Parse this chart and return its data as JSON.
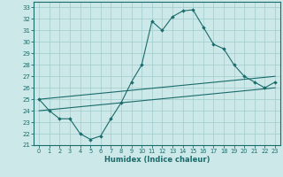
{
  "xlabel": "Humidex (Indice chaleur)",
  "bg_color": "#cce8e8",
  "grid_color": "#a0cccc",
  "line_color": "#1a6b6b",
  "xlim": [
    -0.5,
    23.5
  ],
  "ylim": [
    21,
    33.5
  ],
  "xticks": [
    0,
    1,
    2,
    3,
    4,
    5,
    6,
    7,
    8,
    9,
    10,
    11,
    12,
    13,
    14,
    15,
    16,
    17,
    18,
    19,
    20,
    21,
    22,
    23
  ],
  "yticks": [
    21,
    22,
    23,
    24,
    25,
    26,
    27,
    28,
    29,
    30,
    31,
    32,
    33
  ],
  "line1_x": [
    0,
    1,
    2,
    3,
    4,
    5,
    6,
    7,
    8,
    9,
    10,
    11,
    12,
    13,
    14,
    15,
    16,
    17,
    18,
    19,
    20,
    21,
    22,
    23
  ],
  "line1_y": [
    25.0,
    24.0,
    23.3,
    23.3,
    22.0,
    21.5,
    21.8,
    23.3,
    24.7,
    26.5,
    28.0,
    31.8,
    31.0,
    32.2,
    32.7,
    32.8,
    31.3,
    29.8,
    29.4,
    28.0,
    27.0,
    26.5,
    26.0,
    26.5
  ],
  "line2_x": [
    0,
    23
  ],
  "line2_y": [
    25.0,
    27.0
  ],
  "line3_x": [
    0,
    23
  ],
  "line3_y": [
    24.0,
    26.0
  ]
}
